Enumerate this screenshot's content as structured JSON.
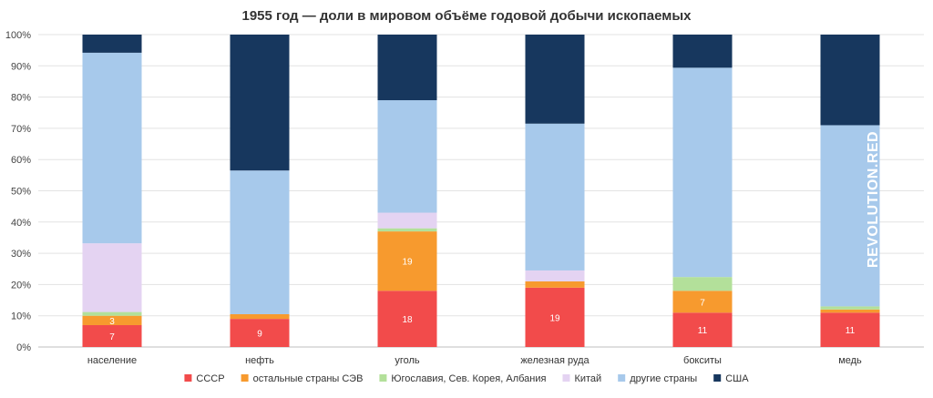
{
  "chart_data": {
    "type": "bar",
    "stacked": "percent",
    "title": "1955 год — доли в мировом объёме годовой добычи ископаемых",
    "categories": [
      "население",
      "нефть",
      "уголь",
      "железная руда",
      "бокситы",
      "медь"
    ],
    "y_ticks": [
      "0%",
      "10%",
      "20%",
      "30%",
      "40%",
      "50%",
      "60%",
      "70%",
      "80%",
      "90%",
      "100%"
    ],
    "ylim": [
      0,
      100
    ],
    "grid": true,
    "legend_position": "bottom",
    "series": [
      {
        "name": "СССР",
        "color": "#f24b4b",
        "values": [
          7,
          9,
          18,
          19,
          11,
          11
        ],
        "labels": [
          "7",
          "9",
          "18",
          "19",
          "11",
          "11"
        ]
      },
      {
        "name": "остальные страны СЭВ",
        "color": "#f79a2e",
        "values": [
          3,
          1.5,
          19,
          2,
          7,
          1
        ],
        "labels": [
          "3",
          "",
          "19",
          "",
          "7",
          ""
        ]
      },
      {
        "name": "Югославия, Сев. Корея, Албания",
        "color": "#b3e09a",
        "values": [
          1.2,
          0,
          1,
          0,
          4.4,
          1
        ],
        "labels": [
          "",
          "",
          "",
          "",
          "",
          ""
        ]
      },
      {
        "name": "Китай",
        "color": "#e4d3f2",
        "values": [
          22,
          0,
          5,
          3.5,
          0,
          0
        ],
        "labels": [
          "",
          "",
          "",
          "",
          "",
          ""
        ]
      },
      {
        "name": "другие страны",
        "color": "#a7c9eb",
        "values": [
          61,
          46,
          36,
          47,
          67,
          58
        ],
        "labels": [
          "",
          "",
          "",
          "",
          "",
          ""
        ]
      },
      {
        "name": "США",
        "color": "#17375e",
        "values": [
          5.8,
          43.5,
          21,
          28.5,
          10.6,
          29
        ],
        "labels": [
          "",
          "",
          "",
          "",
          "",
          ""
        ]
      }
    ],
    "watermark": "REVOLUTION.RED"
  }
}
